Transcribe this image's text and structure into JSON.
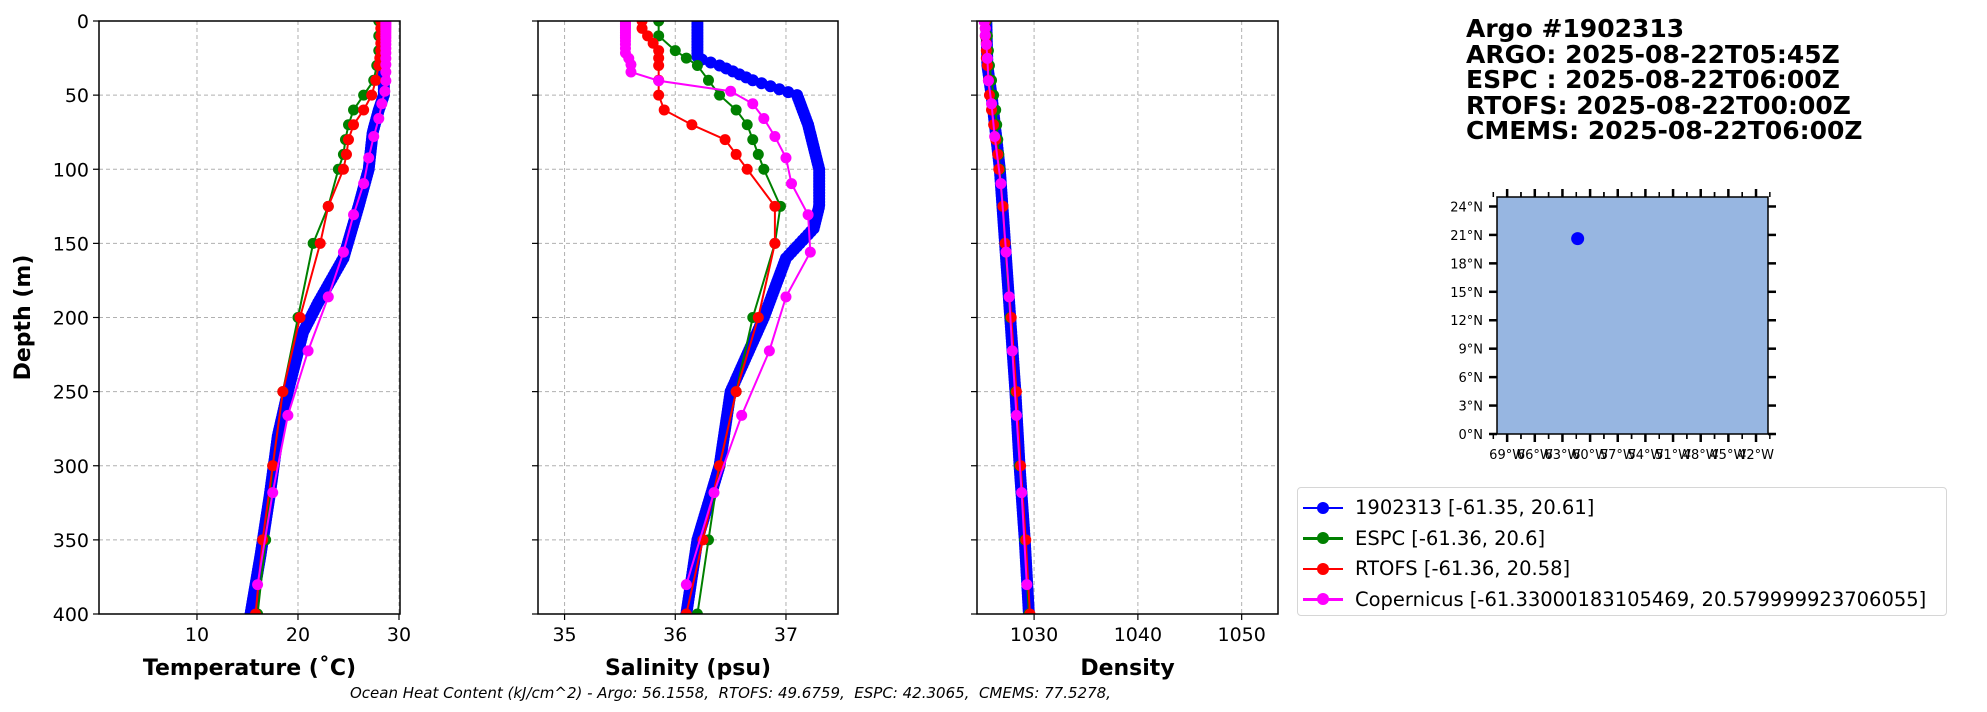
{
  "title": {
    "lines": [
      "Argo #1902313",
      "ARGO: 2025-08-22T05:45Z",
      "ESPC : 2025-08-22T06:00Z",
      "RTOFS: 2025-08-22T00:00Z",
      "CMEMS: 2025-08-22T06:00Z"
    ]
  },
  "footer": "Ocean Heat Content (kJ/cm^2) - Argo: 56.1558,  RTOFS: 49.6759,  ESPC: 42.3065,  CMEMS: 77.5278,",
  "legend": {
    "placement": "bottom-right",
    "entries": [
      {
        "label": "1902313 [-61.35, 20.61]",
        "color": "#0000ff"
      },
      {
        "label": "ESPC [-61.36, 20.6]",
        "color": "#008000"
      },
      {
        "label": "RTOFS [-61.36, 20.58]",
        "color": "#ff0000"
      },
      {
        "label": "Copernicus [-61.33000183105469, 20.579999923706055]",
        "color": "#ff00ff"
      }
    ]
  },
  "chart_data": [
    {
      "type": "line",
      "name": "temperature",
      "xlabel": "Temperature (˚C)",
      "ylabel": "Depth (m)",
      "xlim": [
        0.3,
        30.1
      ],
      "ylim": [
        400,
        0
      ],
      "grid": true,
      "xticks": [
        10,
        20,
        30
      ],
      "yticks": [
        0,
        50,
        100,
        150,
        200,
        250,
        300,
        350,
        400
      ],
      "series": [
        {
          "name": "1902313",
          "color": "#0000ff",
          "dense": true,
          "depth": [
            0,
            20,
            50,
            60,
            75,
            100,
            125,
            160,
            190,
            210,
            250,
            280,
            320,
            360,
            400
          ],
          "values": [
            28.5,
            28.5,
            28.5,
            28.0,
            27.4,
            27.0,
            26.0,
            24.5,
            22.0,
            20.5,
            19.0,
            18.0,
            17.2,
            16.3,
            15.3
          ]
        },
        {
          "name": "ESPC",
          "color": "#008000",
          "depth": [
            0,
            10,
            20,
            30,
            40,
            50,
            60,
            70,
            80,
            90,
            100,
            125,
            150,
            200,
            250,
            300,
            350,
            400
          ],
          "values": [
            28.0,
            28.0,
            28.0,
            27.8,
            27.5,
            26.5,
            25.5,
            25.0,
            24.7,
            24.5,
            24.0,
            23.0,
            21.5,
            20.0,
            18.5,
            17.5,
            16.8,
            16.0
          ]
        },
        {
          "name": "RTOFS",
          "color": "#ff0000",
          "depth": [
            0,
            5,
            10,
            15,
            20,
            25,
            30,
            40,
            50,
            60,
            70,
            80,
            90,
            100,
            125,
            150,
            200,
            250,
            300,
            350,
            400
          ],
          "values": [
            28.2,
            28.2,
            28.2,
            28.2,
            28.2,
            28.1,
            28.0,
            27.7,
            27.3,
            26.5,
            25.5,
            25.0,
            24.8,
            24.5,
            23.0,
            22.2,
            20.2,
            18.5,
            17.5,
            16.5,
            15.8
          ]
        },
        {
          "name": "Copernicus",
          "color": "#ff00ff",
          "depth": [
            0.5,
            1.5,
            2.6,
            3.8,
            5,
            6.4,
            7.9,
            9.6,
            11.4,
            13.5,
            15.8,
            18.5,
            21.6,
            25.2,
            29.4,
            34.4,
            40.3,
            47.4,
            55.8,
            65.8,
            77.9,
            92.3,
            109.7,
            130.7,
            155.9,
            186.1,
            222.5,
            266.0,
            318.1,
            380.2
          ],
          "values": [
            28.7,
            28.7,
            28.7,
            28.7,
            28.7,
            28.7,
            28.7,
            28.7,
            28.7,
            28.7,
            28.7,
            28.7,
            28.7,
            28.7,
            28.7,
            28.7,
            28.7,
            28.6,
            28.3,
            28.0,
            27.5,
            27.0,
            26.5,
            25.5,
            24.5,
            23.0,
            21.0,
            19.0,
            17.5,
            16.0
          ]
        }
      ]
    },
    {
      "type": "line",
      "name": "salinity",
      "xlabel": "Salinity (psu)",
      "ylabel": "",
      "xlim": [
        34.76,
        37.47
      ],
      "ylim": [
        400,
        0
      ],
      "grid": true,
      "xticks": [
        35,
        36,
        37
      ],
      "yticks": [
        0,
        50,
        100,
        150,
        200,
        250,
        300,
        350,
        400
      ],
      "series": [
        {
          "name": "1902313",
          "color": "#0000ff",
          "dense": true,
          "depth": [
            0,
            25,
            30,
            40,
            45,
            50,
            70,
            100,
            125,
            140,
            160,
            200,
            250,
            300,
            350,
            400
          ],
          "values": [
            36.2,
            36.2,
            36.4,
            36.7,
            36.9,
            37.1,
            37.2,
            37.3,
            37.3,
            37.25,
            37.0,
            36.8,
            36.5,
            36.4,
            36.2,
            36.1
          ]
        },
        {
          "name": "ESPC",
          "color": "#008000",
          "depth": [
            0,
            10,
            20,
            25,
            30,
            40,
            50,
            60,
            70,
            80,
            90,
            100,
            125,
            150,
            200,
            250,
            300,
            350,
            400
          ],
          "values": [
            35.85,
            35.85,
            36.0,
            36.1,
            36.2,
            36.3,
            36.4,
            36.55,
            36.65,
            36.7,
            36.75,
            36.8,
            36.95,
            36.9,
            36.7,
            36.55,
            36.4,
            36.3,
            36.2
          ]
        },
        {
          "name": "RTOFS",
          "color": "#ff0000",
          "depth": [
            0,
            5,
            10,
            15,
            20,
            25,
            30,
            40,
            50,
            60,
            70,
            80,
            90,
            100,
            125,
            150,
            200,
            250,
            300,
            350,
            400
          ],
          "values": [
            35.7,
            35.7,
            35.75,
            35.8,
            35.85,
            35.85,
            35.85,
            35.85,
            35.85,
            35.9,
            36.15,
            36.45,
            36.55,
            36.65,
            36.9,
            36.9,
            36.75,
            36.55,
            36.4,
            36.25,
            36.1
          ]
        },
        {
          "name": "Copernicus",
          "color": "#ff00ff",
          "depth": [
            0.5,
            1.5,
            2.6,
            3.8,
            5,
            6.4,
            7.9,
            9.6,
            11.4,
            13.5,
            15.8,
            18.5,
            21.6,
            25.2,
            29.4,
            34.4,
            40.3,
            47.4,
            55.8,
            65.8,
            77.9,
            92.3,
            109.7,
            130.7,
            155.9,
            186.1,
            222.5,
            266.0,
            318.1,
            380.2
          ],
          "values": [
            35.55,
            35.55,
            35.55,
            35.55,
            35.55,
            35.55,
            35.55,
            35.55,
            35.55,
            35.55,
            35.55,
            35.55,
            35.55,
            35.58,
            35.6,
            35.6,
            35.85,
            36.5,
            36.7,
            36.8,
            36.9,
            37.0,
            37.05,
            37.2,
            37.22,
            37.0,
            36.85,
            36.6,
            36.35,
            36.1
          ]
        }
      ]
    },
    {
      "type": "line",
      "name": "density",
      "xlabel": "Density",
      "ylabel": "",
      "xlim": [
        1024.5,
        1053.5
      ],
      "ylim": [
        400,
        0
      ],
      "grid": true,
      "xticks": [
        1030,
        1040,
        1050
      ],
      "yticks": [
        0,
        50,
        100,
        150,
        200,
        250,
        300,
        350,
        400
      ],
      "series": [
        {
          "name": "1902313",
          "color": "#0000ff",
          "dense": true,
          "depth": [
            0,
            30,
            50,
            100,
            150,
            200,
            250,
            300,
            350,
            400
          ],
          "values": [
            1025.4,
            1025.5,
            1025.9,
            1026.7,
            1027.2,
            1027.7,
            1028.2,
            1028.6,
            1029.1,
            1029.5
          ]
        },
        {
          "name": "ESPC",
          "color": "#008000",
          "depth": [
            0,
            10,
            20,
            30,
            40,
            50,
            60,
            70,
            80,
            90,
            100,
            125,
            150,
            200,
            250,
            300,
            350,
            400
          ],
          "values": [
            1025.4,
            1025.5,
            1025.6,
            1025.7,
            1025.9,
            1026.1,
            1026.3,
            1026.4,
            1026.5,
            1026.6,
            1026.7,
            1027.0,
            1027.2,
            1027.7,
            1028.2,
            1028.6,
            1029.1,
            1029.5
          ]
        },
        {
          "name": "RTOFS",
          "color": "#ff0000",
          "depth": [
            0,
            5,
            10,
            15,
            20,
            25,
            30,
            40,
            50,
            60,
            70,
            80,
            90,
            100,
            125,
            150,
            200,
            250,
            300,
            350,
            400
          ],
          "values": [
            1025.3,
            1025.3,
            1025.3,
            1025.4,
            1025.4,
            1025.4,
            1025.5,
            1025.6,
            1025.7,
            1025.9,
            1026.1,
            1026.3,
            1026.5,
            1026.6,
            1027.0,
            1027.2,
            1027.8,
            1028.3,
            1028.7,
            1029.2,
            1029.6
          ]
        },
        {
          "name": "Copernicus",
          "color": "#ff00ff",
          "depth": [
            0.5,
            5,
            9.6,
            15.8,
            25.2,
            40.3,
            55.8,
            77.9,
            109.7,
            155.9,
            186.1,
            222.5,
            266.0,
            318.1,
            380.2
          ],
          "values": [
            1025.2,
            1025.3,
            1025.3,
            1025.4,
            1025.5,
            1025.6,
            1025.9,
            1026.2,
            1026.8,
            1027.3,
            1027.6,
            1027.9,
            1028.3,
            1028.8,
            1029.3
          ]
        }
      ]
    },
    {
      "type": "scatter",
      "name": "location-map",
      "xlim": [
        -70.1,
        -40.7
      ],
      "ylim": [
        0,
        25
      ],
      "xtick_labels": [
        "69°W",
        "66°W",
        "63°W",
        "60°W",
        "57°W",
        "54°W",
        "51°W",
        "48°W",
        "45°W",
        "42°W"
      ],
      "xticks": [
        -69,
        -66,
        -63,
        -60,
        -57,
        -54,
        -51,
        -48,
        -45,
        -42
      ],
      "ytick_labels": [
        "0°N",
        "3°N",
        "6°N",
        "9°N",
        "12°N",
        "15°N",
        "18°N",
        "21°N",
        "24°N"
      ],
      "yticks": [
        0,
        3,
        6,
        9,
        12,
        15,
        18,
        21,
        24
      ],
      "points": [
        {
          "lon": -61.35,
          "lat": 20.61,
          "color": "#0000ff"
        }
      ],
      "ocean_color": "#97b6e1",
      "land_color": "#d2b48c"
    }
  ]
}
